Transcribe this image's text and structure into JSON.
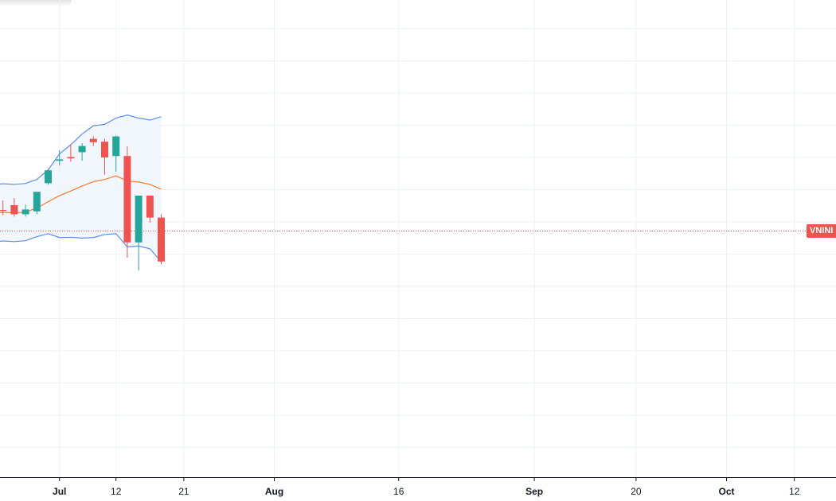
{
  "chart": {
    "symbol_label": "VNINI",
    "colors": {
      "background": "#ffffff",
      "grid": "#eef1f5",
      "bull": "#26a69a",
      "bear": "#ef5350",
      "band_line": "#5b8def",
      "band_fill": "#eef5fc",
      "sma_line": "#f57c2e",
      "price_line": "#ef5350"
    }
  },
  "chart_data": {
    "type": "candlestick",
    "title": "",
    "xlabel": "",
    "ylabel": "",
    "ylim": [
      -42,
      58
    ],
    "grid": true,
    "x_ticks": [
      {
        "label": "Jul",
        "index": 6,
        "month": true
      },
      {
        "label": "12",
        "index": 11,
        "month": false
      },
      {
        "label": "21",
        "index": 17,
        "month": false
      },
      {
        "label": "Aug",
        "index": 25,
        "month": true
      },
      {
        "label": "16",
        "index": 36,
        "month": false
      },
      {
        "label": "Sep",
        "index": 48,
        "month": true
      },
      {
        "label": "20",
        "index": 57,
        "month": false
      },
      {
        "label": "Oct",
        "index": 65,
        "month": true
      },
      {
        "label": "12",
        "index": 71,
        "month": false
      }
    ],
    "candles": [
      {
        "o": 13.5,
        "h": 15.3,
        "l": 12.0,
        "c": 13.2
      },
      {
        "o": 14.0,
        "h": 16.0,
        "l": 12.9,
        "c": 13.8
      },
      {
        "o": 15.0,
        "h": 16.5,
        "l": 12.6,
        "c": 13.1
      },
      {
        "o": 13.1,
        "h": 15.1,
        "l": 12.6,
        "c": 14.1
      },
      {
        "o": 13.7,
        "h": 17.8,
        "l": 13.1,
        "c": 17.8
      },
      {
        "o": 19.6,
        "h": 22.6,
        "l": 19.3,
        "c": 22.3
      },
      {
        "o": 24.3,
        "h": 26.5,
        "l": 23.3,
        "c": 24.6
      },
      {
        "o": 25.1,
        "h": 27.6,
        "l": 24.1,
        "c": 24.8
      },
      {
        "o": 26.1,
        "h": 28.0,
        "l": 24.3,
        "c": 27.4
      },
      {
        "o": 28.9,
        "h": 29.4,
        "l": 27.4,
        "c": 28.2
      },
      {
        "o": 28.3,
        "h": 28.9,
        "l": 21.4,
        "c": 25.0
      },
      {
        "o": 25.3,
        "h": 29.6,
        "l": 22.0,
        "c": 29.4
      },
      {
        "o": 25.3,
        "h": 27.3,
        "l": 4.0,
        "c": 7.2
      },
      {
        "o": 7.2,
        "h": 17.0,
        "l": 1.3,
        "c": 17.0
      },
      {
        "o": 17.0,
        "h": 17.0,
        "l": 11.3,
        "c": 12.4
      },
      {
        "o": 12.4,
        "h": 13.1,
        "l": 2.6,
        "c": 3.2
      }
    ]
  }
}
